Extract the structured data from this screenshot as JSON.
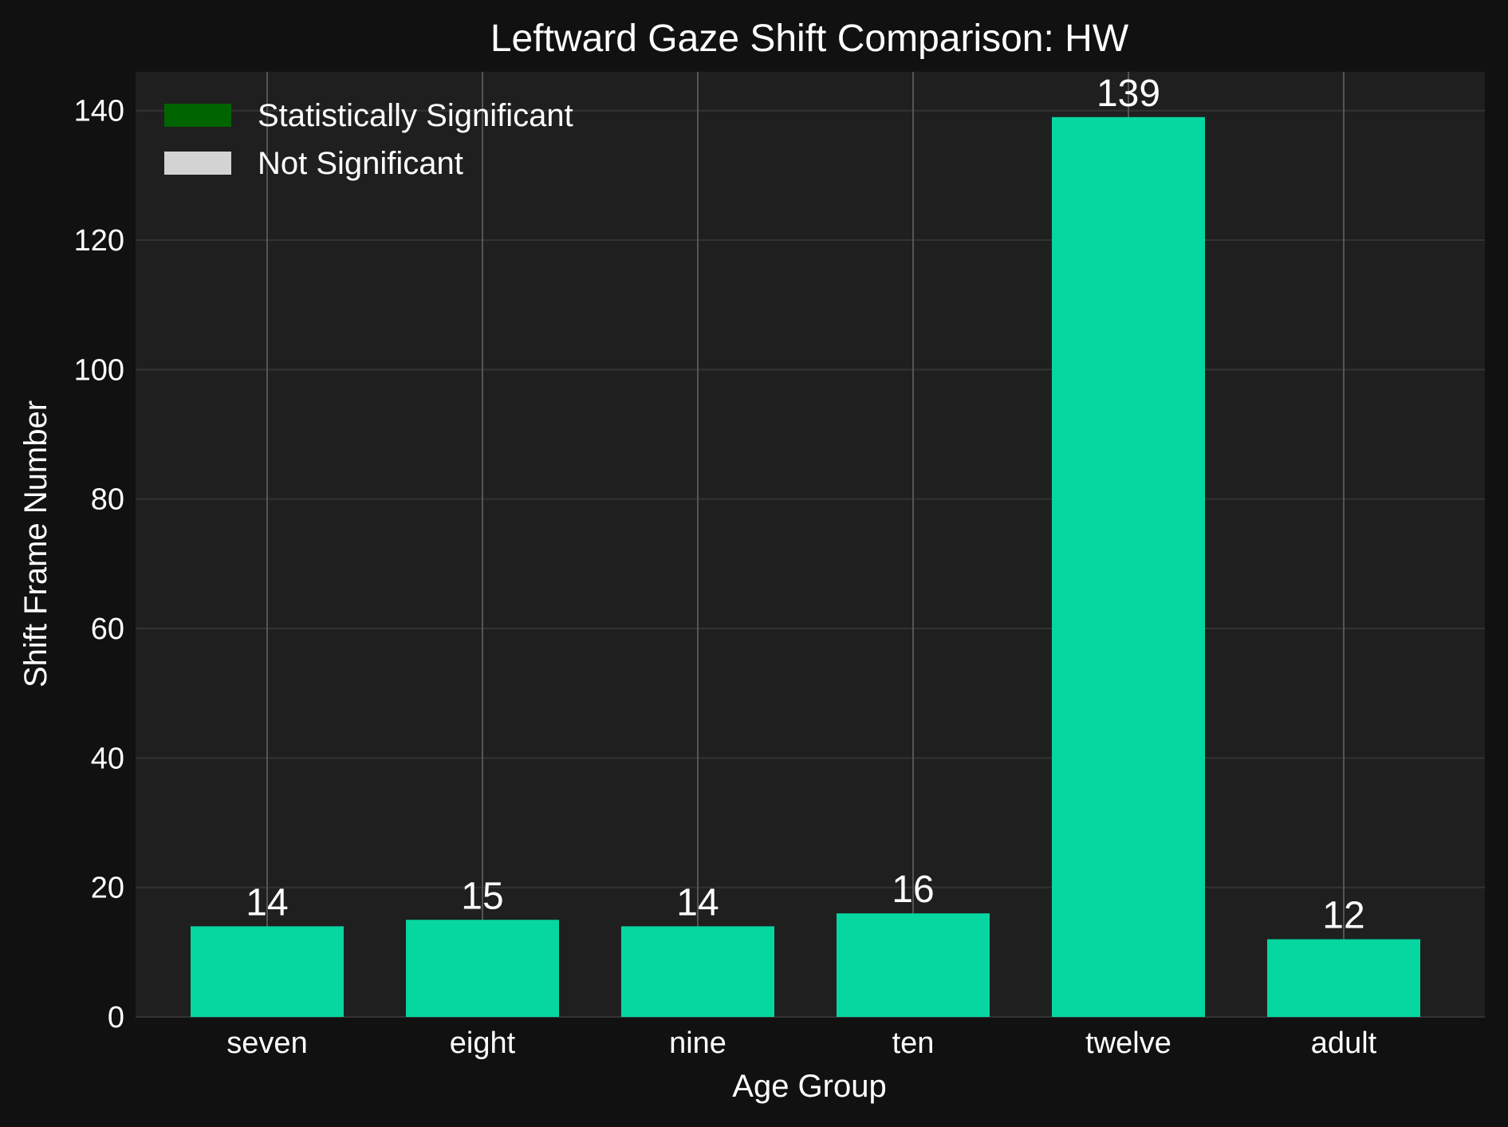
{
  "chart_data": {
    "type": "bar",
    "title": "Leftward Gaze Shift Comparison: HW",
    "xlabel": "Age Group",
    "ylabel": "Shift Frame Number",
    "categories": [
      "seven",
      "eight",
      "nine",
      "ten",
      "twelve",
      "adult"
    ],
    "values": [
      14,
      15,
      14,
      16,
      139,
      12
    ],
    "data_labels": [
      "14",
      "15",
      "14",
      "16",
      "139",
      "12"
    ],
    "ylim": [
      0,
      146
    ],
    "yticks": [
      0,
      20,
      40,
      60,
      80,
      100,
      120,
      140
    ],
    "ytick_labels": [
      "0",
      "20",
      "40",
      "60",
      "80",
      "100",
      "120",
      "140"
    ],
    "grid": true,
    "legend": {
      "placement": "top-left",
      "entries": [
        {
          "label": "Statistically Significant",
          "color": "#006400"
        },
        {
          "label": "Not Significant",
          "color": "#d3d3d3"
        }
      ]
    },
    "colors": {
      "bar": "#06d6a0",
      "background": "#111111",
      "plot_background": "#1f1f1f"
    }
  }
}
